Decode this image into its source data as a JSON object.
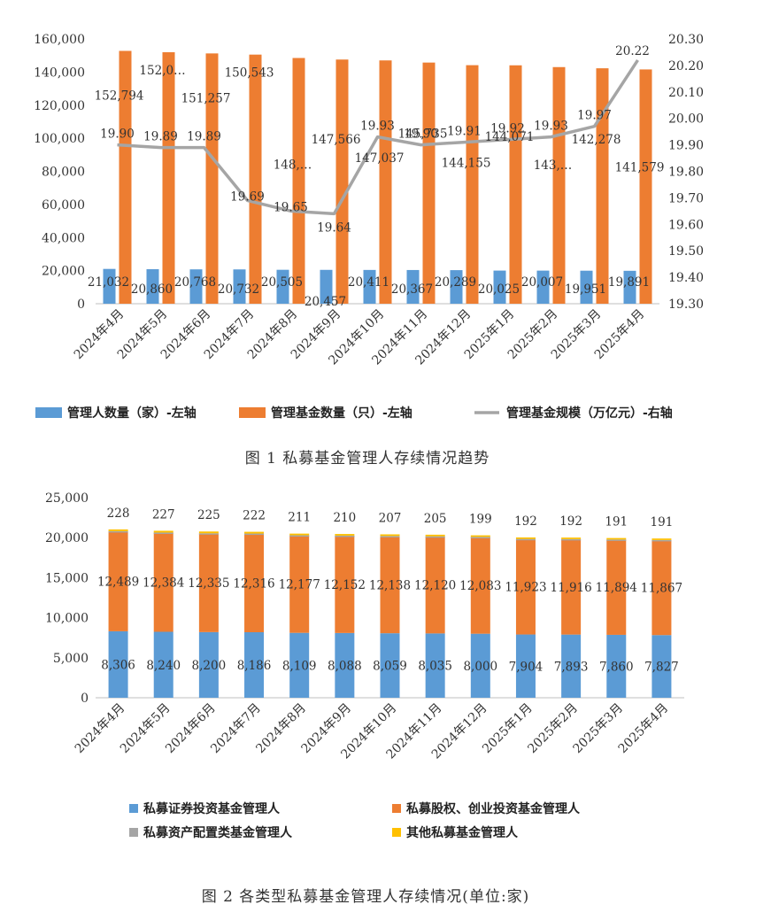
{
  "chart_data": [
    {
      "type": "bar",
      "caption": "图 1  私募基金管理人存续情况趋势",
      "categories": [
        "2024年4月",
        "2024年5月",
        "2024年6月",
        "2024年7月",
        "2024年8月",
        "2024年9月",
        "2024年10月",
        "2024年11月",
        "2024年12月",
        "2025年1月",
        "2025年2月",
        "2025年3月",
        "2025年4月"
      ],
      "y_left_ticks": [
        "160,000",
        "140,000",
        "120,000",
        "100,000",
        "80,000",
        "60,000",
        "40,000",
        "20,000",
        "0"
      ],
      "y_right_ticks": [
        "20.30",
        "20.20",
        "20.10",
        "20.00",
        "19.90",
        "19.80",
        "19.70",
        "19.60",
        "19.50",
        "19.40",
        "19.30"
      ],
      "ylim_left": [
        0,
        160000
      ],
      "ylim_right": [
        19.3,
        20.3
      ],
      "series": [
        {
          "name": "管理人数量（家）-左轴",
          "kind": "bar",
          "axis": "left",
          "color": "#5B9BD5",
          "values": [
            21032,
            20860,
            20768,
            20732,
            20505,
            20457,
            20411,
            20367,
            20289,
            20025,
            20007,
            19951,
            19891
          ],
          "labels": [
            "21,032",
            "20,860",
            "20,768",
            "20,732",
            "20,505",
            "20,457",
            "20,411",
            "20,367",
            "20,289",
            "20,025",
            "20,007",
            "19,951",
            "19,891"
          ]
        },
        {
          "name": "管理基金数量（只）-左轴",
          "kind": "bar",
          "axis": "left",
          "color": "#ED7D31",
          "values": [
            152794,
            152000,
            151257,
            150543,
            148500,
            147566,
            147037,
            145735,
            144155,
            144071,
            143000,
            142278,
            141579
          ],
          "labels": [
            "152,794",
            "152,0…",
            "151,257",
            "150,543",
            "148,…",
            "147,566",
            "147,037",
            "145,735",
            "144,155",
            "144,071",
            "143,…",
            "142,278",
            "141,579"
          ]
        },
        {
          "name": "管理基金规模（万亿元）-右轴",
          "kind": "line",
          "axis": "right",
          "color": "#A5A5A5",
          "values": [
            19.9,
            19.89,
            19.89,
            19.69,
            19.65,
            19.64,
            19.93,
            19.9,
            19.91,
            19.92,
            19.93,
            19.97,
            20.22
          ],
          "labels": [
            "19.90",
            "19.89",
            "19.89",
            "19.69",
            "19.65",
            "19.64",
            "19.93",
            "19.90",
            "19.91",
            "19.92",
            "19.93",
            "19.97",
            "20.22"
          ]
        }
      ]
    },
    {
      "type": "bar",
      "stacked": true,
      "caption": "图 2  各类型私募基金管理人存续情况(单位:家)",
      "categories": [
        "2024年4月",
        "2024年5月",
        "2024年6月",
        "2024年7月",
        "2024年8月",
        "2024年9月",
        "2024年10月",
        "2024年11月",
        "2024年12月",
        "2025年1月",
        "2025年2月",
        "2025年3月",
        "2025年4月"
      ],
      "y_ticks": [
        "25,000",
        "20,000",
        "15,000",
        "10,000",
        "5,000",
        "0"
      ],
      "ylim": [
        0,
        25000
      ],
      "series": [
        {
          "name": "私募证券投资基金管理人",
          "color": "#5B9BD5",
          "values": [
            8306,
            8240,
            8200,
            8186,
            8109,
            8088,
            8059,
            8035,
            8000,
            7904,
            7893,
            7860,
            7827
          ],
          "labels": [
            "8,306",
            "8,240",
            "8,200",
            "8,186",
            "8,109",
            "8,088",
            "8,059",
            "8,035",
            "8,000",
            "7,904",
            "7,893",
            "7,860",
            "7,827"
          ]
        },
        {
          "name": "私募股权、创业投资基金管理人",
          "color": "#ED7D31",
          "values": [
            12489,
            12384,
            12335,
            12316,
            12177,
            12152,
            12138,
            12120,
            12083,
            11923,
            11916,
            11894,
            11867
          ],
          "labels": [
            "12,489",
            "12,384",
            "12,335",
            "12,316",
            "12,177",
            "12,152",
            "12,138",
            "12,120",
            "12,083",
            "11,923",
            "11,916",
            "11,894",
            "11,867"
          ]
        },
        {
          "name": "私募资产配置类基金管理人",
          "color": "#A5A5A5",
          "values": [
            9,
            9,
            9,
            9,
            8,
            8,
            8,
            8,
            8,
            9,
            9,
            9,
            9
          ]
        },
        {
          "name": "其他私募基金管理人",
          "color": "#FFC000",
          "values": [
            228,
            227,
            225,
            222,
            211,
            210,
            207,
            205,
            199,
            192,
            192,
            191,
            191
          ],
          "labels": [
            "228",
            "227",
            "225",
            "222",
            "211",
            "210",
            "207",
            "205",
            "199",
            "192",
            "192",
            "191",
            "191"
          ]
        }
      ]
    }
  ]
}
